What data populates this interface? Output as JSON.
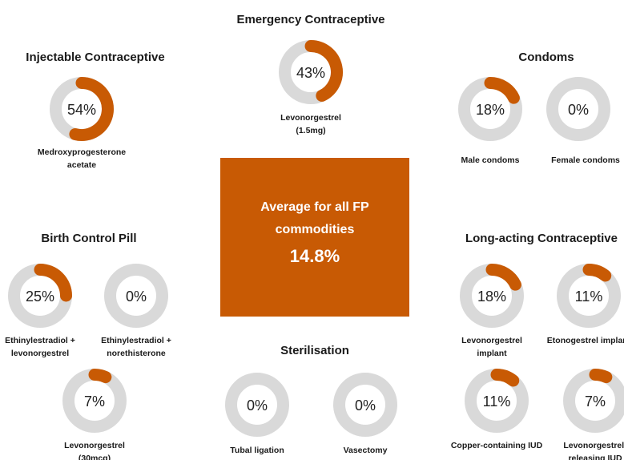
{
  "chart_data": [
    {
      "type": "donut",
      "title": "Injectable Contraceptive",
      "categories": [
        "Medroxyprogesterone acetate"
      ],
      "values": [
        54
      ],
      "value_labels": [
        "54%"
      ],
      "color": "#c85a04",
      "track_color": "#d9d9d9"
    },
    {
      "type": "donut",
      "title": "Emergency Contraceptive",
      "categories": [
        "Levonorgestrel (1.5mg)"
      ],
      "values": [
        43
      ],
      "value_labels": [
        "43%"
      ],
      "color": "#c85a04",
      "track_color": "#d9d9d9"
    },
    {
      "type": "donut",
      "title": "Condoms",
      "categories": [
        "Male condoms",
        "Female condoms"
      ],
      "values": [
        18,
        0
      ],
      "value_labels": [
        "18%",
        "0%"
      ],
      "color": "#c85a04",
      "track_color": "#d9d9d9"
    },
    {
      "type": "donut",
      "title": "Birth Control Pill",
      "categories": [
        "Ethinylestradiol + levonorgestrel",
        "Ethinylestradiol + norethisterone",
        "Levonorgestrel (30mcg)"
      ],
      "values": [
        25,
        0,
        7
      ],
      "value_labels": [
        "25%",
        "0%",
        "7%"
      ],
      "color": "#c85a04",
      "track_color": "#d9d9d9"
    },
    {
      "type": "donut",
      "title": "Sterilisation",
      "categories": [
        "Tubal ligation",
        "Vasectomy"
      ],
      "values": [
        0,
        0
      ],
      "value_labels": [
        "0%",
        "0%"
      ],
      "color": "#c85a04",
      "track_color": "#d9d9d9"
    },
    {
      "type": "donut",
      "title": "Long-acting Contraceptive",
      "categories": [
        "Levonorgestrel implant",
        "Etonogestrel implant",
        "Copper-containing IUD",
        "Levonorgestrel-releasing IUD"
      ],
      "values": [
        18,
        11,
        11,
        7
      ],
      "value_labels": [
        "18%",
        "11%",
        "11%",
        "7%"
      ],
      "color": "#c85a04",
      "track_color": "#d9d9d9"
    }
  ],
  "summary": {
    "label": "Average for all FP commodities",
    "value": "14.8%"
  }
}
